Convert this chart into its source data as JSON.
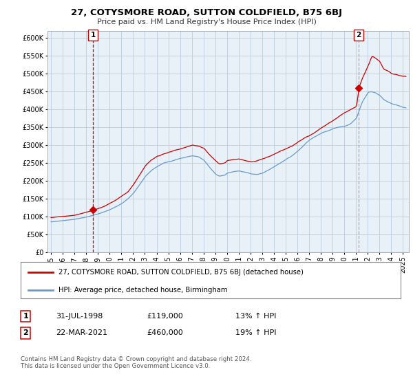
{
  "title": "27, COTYSMORE ROAD, SUTTON COLDFIELD, B75 6BJ",
  "subtitle": "Price paid vs. HM Land Registry's House Price Index (HPI)",
  "legend_line1": "27, COTYSMORE ROAD, SUTTON COLDFIELD, B75 6BJ (detached house)",
  "legend_line2": "HPI: Average price, detached house, Birmingham",
  "marker1_date": 1998.583,
  "marker1_value": 119000,
  "marker1_label": "1",
  "marker1_text_date": "31-JUL-1998",
  "marker1_text_price": "£119,000",
  "marker1_text_hpi": "13% ↑ HPI",
  "marker2_date": 2021.22,
  "marker2_value": 460000,
  "marker2_label": "2",
  "marker2_text_date": "22-MAR-2021",
  "marker2_text_price": "£460,000",
  "marker2_text_hpi": "19% ↑ HPI",
  "red_line_color": "#cc0000",
  "blue_line_color": "#6699cc",
  "marker_color": "#cc0000",
  "grid_color": "#bbccdd",
  "chart_bg_color": "#e8f0f8",
  "background_color": "#ffffff",
  "footnote": "Contains HM Land Registry data © Crown copyright and database right 2024.\nThis data is licensed under the Open Government Licence v3.0.",
  "ylim": [
    0,
    620000
  ],
  "xlim_start": 1994.7,
  "xlim_end": 2025.5
}
